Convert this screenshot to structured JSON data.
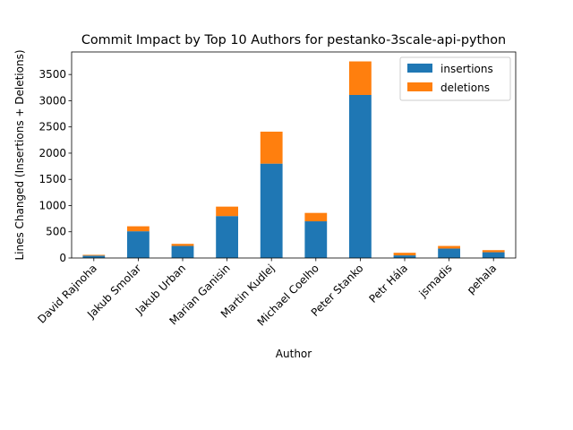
{
  "chart_data": {
    "type": "bar",
    "stacked": true,
    "title": "Commit Impact by Top 10 Authors for pestanko-3scale-api-python",
    "xlabel": "Author",
    "ylabel": "Lines Changed (Insertions + Deletions)",
    "categories": [
      "David Rajnoha",
      "Jakub Smolar",
      "Jakub Urban",
      "Marian Ganisin",
      "Martin Kudlej",
      "Michael Coelho",
      "Peter Stanko",
      "Petr Hála",
      "jsmadis",
      "pehala"
    ],
    "series": [
      {
        "name": "insertions",
        "color": "#1f77b4",
        "values": [
          45,
          510,
          230,
          800,
          1800,
          700,
          3110,
          50,
          180,
          110
        ]
      },
      {
        "name": "deletions",
        "color": "#ff7f0e",
        "values": [
          15,
          95,
          40,
          180,
          610,
          160,
          640,
          50,
          50,
          40
        ]
      }
    ],
    "ylim": [
      0,
      3930
    ],
    "yticks": [
      0,
      500,
      1000,
      1500,
      2000,
      2500,
      3000,
      3500
    ],
    "grid": false,
    "legend_position": "top-right"
  }
}
